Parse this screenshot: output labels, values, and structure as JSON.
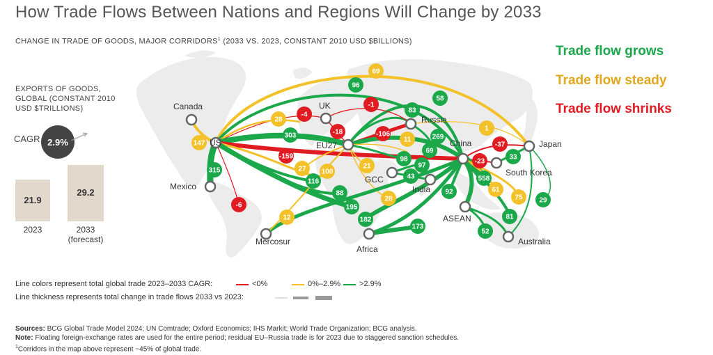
{
  "title": "How Trade Flows Between Nations and Regions Will Change by 2033",
  "subtitle": "CHANGE IN TRADE OF GOODS, MAJOR CORRIDORS",
  "subtitle_sup": "1",
  "subtitle_rest": " (2033 VS. 2023, CONSTANT 2010 USD $BILLIONS)",
  "legend_keys": [
    {
      "label": "Trade flow grows",
      "color": "#1aa84a"
    },
    {
      "label": "Trade flow steady",
      "color": "#e0a81c"
    },
    {
      "label": "Trade flow shrinks",
      "color": "#e01b22"
    }
  ],
  "exports": {
    "label_line1": "EXPORTS OF GOODS,",
    "label_line2": "GLOBAL (CONSTANT 2010",
    "label_line3": "USD $TRILLIONS)",
    "cagr_label": "CAGR",
    "cagr_value": "2.9%",
    "bars": [
      {
        "value": "21.9",
        "year": "2023",
        "sub": ""
      },
      {
        "value": "29.2",
        "year": "2033",
        "sub": "(forecast)"
      }
    ]
  },
  "colors": {
    "grow": "#1aa84a",
    "steady": "#f3c22b",
    "shrink": "#e01b22",
    "node": "#666666"
  },
  "chart_data": {
    "type": "flow-map",
    "title": "How Trade Flows Between Nations and Regions Will Change by 2033",
    "subtitle": "CHANGE IN TRADE OF GOODS, MAJOR CORRIDORS (2033 VS. 2023, CONSTANT 2010 USD $BILLIONS)",
    "nodes": [
      "Canada",
      "US",
      "Mexico",
      "Mercosur",
      "UK",
      "EU27",
      "Russia",
      "GCC",
      "India",
      "Africa",
      "China",
      "ASEAN",
      "South Korea",
      "Japan",
      "Australia"
    ],
    "labeled_values": [
      "69",
      "96",
      "58",
      "83",
      "-4",
      "-1",
      "28",
      "-18",
      "303",
      "-106",
      "269",
      "1",
      "147",
      "-159",
      "11",
      "69",
      "-37",
      "33",
      "27",
      "100",
      "21",
      "98",
      "97",
      "-23",
      "315",
      "116",
      "43",
      "558",
      "88",
      "92",
      "61",
      "28",
      "75",
      "195",
      "29",
      "-6",
      "12",
      "182",
      "81",
      "173",
      "52"
    ],
    "flows_2023_2033": [
      {
        "value": 69,
        "category": "steady"
      },
      {
        "value": 96,
        "category": "grow"
      },
      {
        "value": 58,
        "category": "grow"
      },
      {
        "value": 83,
        "category": "grow"
      },
      {
        "value": -4,
        "category": "shrink"
      },
      {
        "value": -1,
        "category": "shrink"
      },
      {
        "value": 28,
        "category": "steady"
      },
      {
        "value": -18,
        "category": "shrink"
      },
      {
        "from": "US",
        "to": "EU27",
        "value": 303,
        "category": "grow"
      },
      {
        "from": "EU27",
        "to": "Russia",
        "value": -106,
        "category": "shrink"
      },
      {
        "value": 269,
        "category": "grow"
      },
      {
        "value": 1,
        "category": "steady"
      },
      {
        "from": "US",
        "to": "Canada",
        "value": 147,
        "category": "steady"
      },
      {
        "from": "US",
        "to": "China",
        "value": -159,
        "category": "shrink"
      },
      {
        "value": 11,
        "category": "steady"
      },
      {
        "value": 69,
        "category": "grow"
      },
      {
        "from": "China",
        "to": "Japan",
        "value": -37,
        "category": "shrink"
      },
      {
        "value": 33,
        "category": "grow"
      },
      {
        "value": 27,
        "category": "steady"
      },
      {
        "value": 100,
        "category": "steady"
      },
      {
        "value": 21,
        "category": "steady"
      },
      {
        "value": 98,
        "category": "grow"
      },
      {
        "value": 97,
        "category": "grow"
      },
      {
        "from": "China",
        "to": "South Korea",
        "value": -23,
        "category": "shrink"
      },
      {
        "from": "US",
        "to": "Mexico",
        "value": 315,
        "category": "grow"
      },
      {
        "value": 116,
        "category": "grow"
      },
      {
        "value": 43,
        "category": "grow"
      },
      {
        "from": "China",
        "to": "ASEAN",
        "value": 558,
        "category": "grow"
      },
      {
        "value": 88,
        "category": "grow"
      },
      {
        "value": 92,
        "category": "grow"
      },
      {
        "value": 61,
        "category": "steady"
      },
      {
        "value": 28,
        "category": "steady"
      },
      {
        "value": 75,
        "category": "steady"
      },
      {
        "value": 195,
        "category": "grow"
      },
      {
        "value": 29,
        "category": "grow"
      },
      {
        "from": "US",
        "to": "Mercosur",
        "value": -6,
        "category": "shrink"
      },
      {
        "value": 12,
        "category": "steady"
      },
      {
        "value": 182,
        "category": "grow"
      },
      {
        "value": 81,
        "category": "grow"
      },
      {
        "value": 173,
        "category": "grow"
      },
      {
        "value": 52,
        "category": "grow"
      }
    ]
  },
  "key": {
    "colors_text": "Line colors represent total global trade 2023–2033 CAGR:",
    "neg": "<0%",
    "mid": "0%–2.9%",
    "pos": ">2.9%",
    "thickness_text": "Line thickness represents total change in trade flows 2033 vs 2023:"
  },
  "sources": {
    "line1_bold": "Sources:",
    "line1": " BCG Global Trade Model 2024; UN Comtrade; Oxford Economics; IHS Markit; World Trade Organization; BCG analysis.",
    "line2_bold": "Note:",
    "line2": " Floating foreign-exchange rates are used for the entire period; residual EU–Russia trade is for 2023 due to staggered sanction schedules.",
    "line3_sup": "1",
    "line3": "Corridors in the map above represent ~45% of global trade."
  }
}
